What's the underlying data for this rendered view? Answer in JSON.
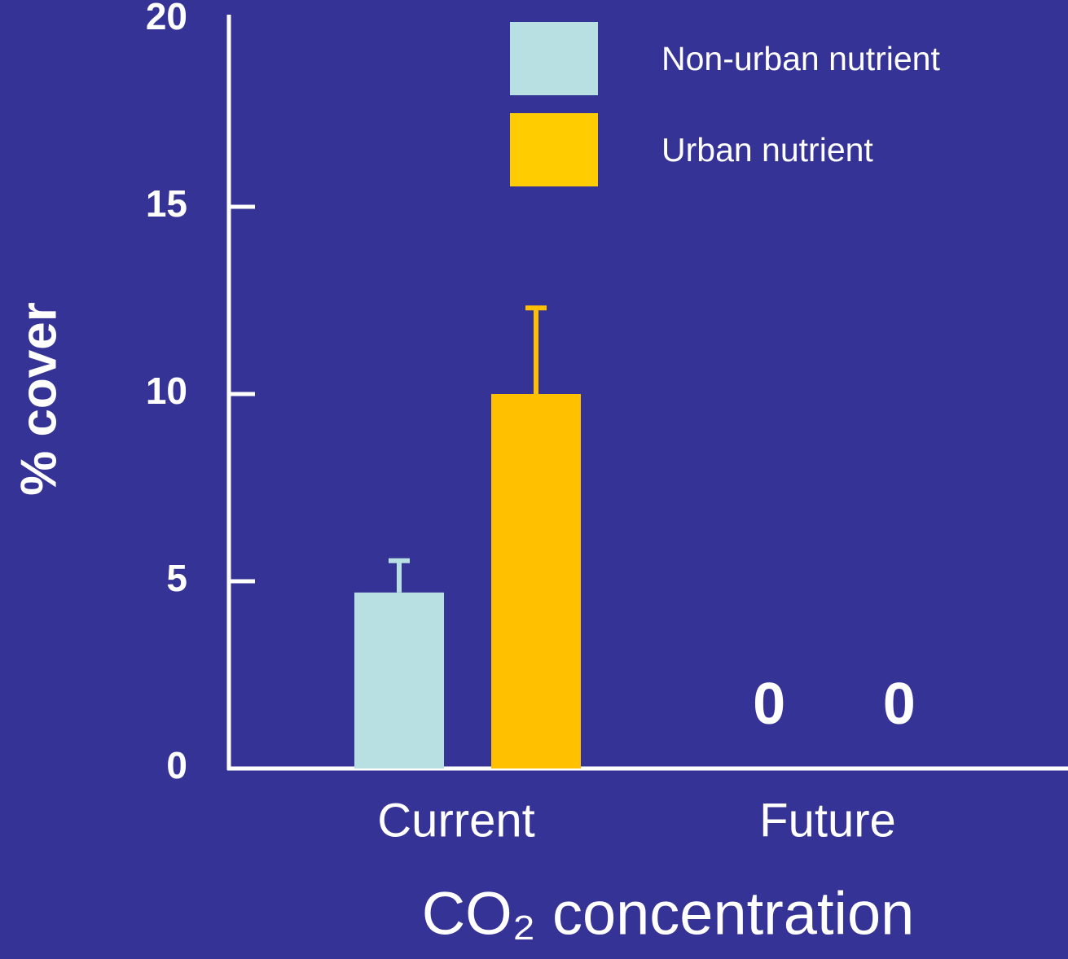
{
  "chart_data": {
    "type": "bar",
    "x_label": "CO₂ concentration",
    "y_label": "% cover",
    "categories": [
      "Current",
      "Future"
    ],
    "series": [
      {
        "name": "Non-urban nutrient",
        "color": "#b8e0e2",
        "values": [
          4.7,
          0
        ],
        "errors": [
          0.85,
          null
        ],
        "value_labels": [
          null,
          "0"
        ]
      },
      {
        "name": "Urban nutrient",
        "color": "#ffc000",
        "values": [
          10,
          0
        ],
        "errors": [
          2.3,
          null
        ],
        "value_labels": [
          null,
          "0"
        ]
      }
    ],
    "ylim": [
      0,
      20
    ],
    "yticks": [
      0,
      5,
      10,
      15,
      20
    ],
    "legend": "top-right"
  }
}
